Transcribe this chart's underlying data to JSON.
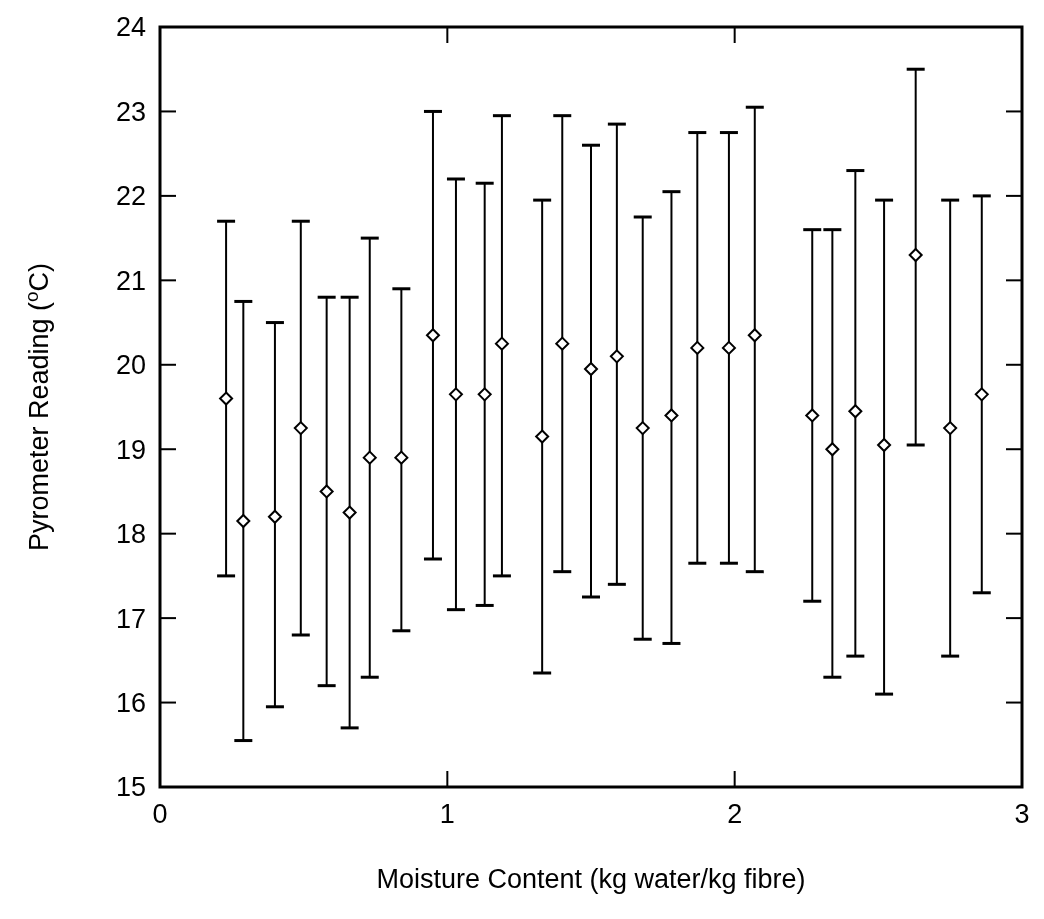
{
  "chart_data": {
    "type": "scatter",
    "xlabel": "Moisture Content (kg water/kg fibre)",
    "ylabel": "Pyrometer Reading ($^{o}$C)",
    "x": [
      0.23,
      0.29,
      0.4,
      0.49,
      0.58,
      0.66,
      0.73,
      0.84,
      0.95,
      1.03,
      1.13,
      1.19,
      1.33,
      1.4,
      1.5,
      1.59,
      1.68,
      1.78,
      1.87,
      1.98,
      2.07,
      2.27,
      2.34,
      2.42,
      2.52,
      2.63,
      2.75,
      2.86
    ],
    "series": [
      {
        "color": "#000000",
        "values": [
          19.6,
          18.15,
          18.2,
          19.25,
          18.5,
          18.25,
          18.9,
          18.9,
          20.35,
          19.65,
          19.65,
          20.25,
          19.15,
          20.25,
          19.95,
          20.1,
          19.25,
          19.4,
          20.2,
          20.2,
          20.35,
          19.4,
          19.0,
          19.45,
          19.05,
          21.3,
          19.25,
          19.65
        ],
        "errors": [
          [
            17.5,
            21.7
          ],
          [
            15.55,
            20.75
          ],
          [
            15.95,
            20.5
          ],
          [
            16.8,
            21.7
          ],
          [
            16.2,
            20.8
          ],
          [
            15.7,
            20.8
          ],
          [
            16.3,
            21.5
          ],
          [
            16.85,
            20.9
          ],
          [
            17.7,
            23.0
          ],
          [
            17.1,
            22.2
          ],
          [
            17.15,
            22.15
          ],
          [
            17.5,
            22.95
          ],
          [
            16.35,
            21.95
          ],
          [
            17.55,
            22.95
          ],
          [
            17.25,
            22.6
          ],
          [
            17.4,
            22.85
          ],
          [
            16.75,
            21.75
          ],
          [
            16.7,
            22.05
          ],
          [
            17.65,
            22.75
          ],
          [
            17.65,
            22.75
          ],
          [
            17.55,
            23.05
          ],
          [
            17.2,
            21.6
          ],
          [
            16.3,
            21.6
          ],
          [
            16.55,
            22.3
          ],
          [
            16.1,
            21.95
          ],
          [
            19.05,
            23.5
          ],
          [
            16.55,
            21.95
          ],
          [
            17.3,
            22.0
          ]
        ]
      }
    ],
    "xlim": [
      0,
      3
    ],
    "xticks": [
      0,
      1,
      2,
      3
    ],
    "ylim": [
      15,
      24
    ],
    "yticks": [
      15,
      16,
      17,
      18,
      19,
      20,
      21,
      22,
      23,
      24
    ],
    "marker": "diamond",
    "grid": false
  }
}
